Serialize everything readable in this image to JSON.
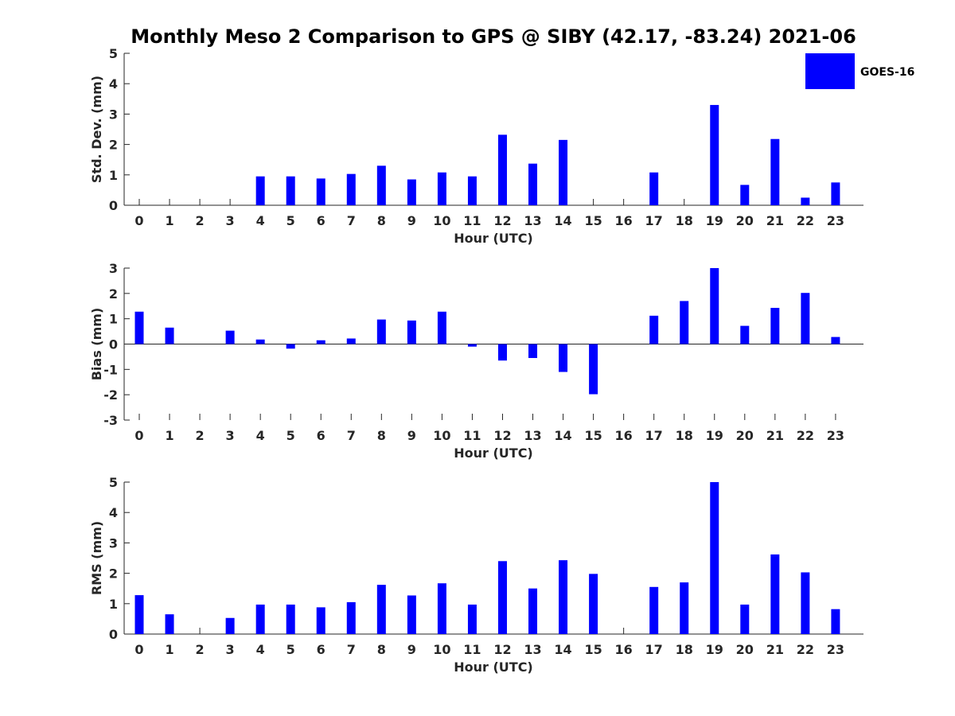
{
  "figure": {
    "title": "Monthly Meso 2 Comparison to GPS @ SIBY (42.17, -83.24) 2021-06",
    "bar_color": "#0000ff",
    "legend": {
      "label": "GOES-16",
      "placement": "top-right"
    }
  },
  "chart_data": [
    {
      "type": "bar",
      "xlabel": "Hour (UTC)",
      "ylabel": "Std. Dev. (mm)",
      "ylim": [
        0,
        5
      ],
      "yticks": [
        0,
        1,
        2,
        3,
        4,
        5
      ],
      "categories": [
        "0",
        "1",
        "2",
        "3",
        "4",
        "5",
        "6",
        "7",
        "8",
        "9",
        "10",
        "11",
        "12",
        "13",
        "14",
        "15",
        "16",
        "17",
        "18",
        "19",
        "20",
        "21",
        "22",
        "23"
      ],
      "series": [
        {
          "name": "GOES-16",
          "values": [
            0,
            0,
            0,
            0,
            0.95,
            0.95,
            0.88,
            1.03,
            1.3,
            0.85,
            1.08,
            0.95,
            2.32,
            1.37,
            2.15,
            0,
            0,
            1.08,
            0,
            3.3,
            0.67,
            2.18,
            0.25,
            0.75
          ]
        }
      ]
    },
    {
      "type": "bar",
      "xlabel": "Hour (UTC)",
      "ylabel": "Bias (mm)",
      "ylim": [
        -3,
        3
      ],
      "yticks": [
        -3,
        -2,
        -1,
        0,
        1,
        2,
        3
      ],
      "categories": [
        "0",
        "1",
        "2",
        "3",
        "4",
        "5",
        "6",
        "7",
        "8",
        "9",
        "10",
        "11",
        "12",
        "13",
        "14",
        "15",
        "16",
        "17",
        "18",
        "19",
        "20",
        "21",
        "22",
        "23"
      ],
      "series": [
        {
          "name": "GOES-16",
          "values": [
            1.28,
            0.65,
            0,
            0.53,
            0.18,
            -0.18,
            0.15,
            0.22,
            0.97,
            0.93,
            1.28,
            -0.1,
            -0.65,
            -0.55,
            -1.1,
            -1.98,
            0,
            1.12,
            1.7,
            3.0,
            0.72,
            1.43,
            2.02,
            0.28
          ]
        }
      ]
    },
    {
      "type": "bar",
      "xlabel": "Hour (UTC)",
      "ylabel": "RMS (mm)",
      "ylim": [
        0,
        5
      ],
      "yticks": [
        0,
        1,
        2,
        3,
        4,
        5
      ],
      "categories": [
        "0",
        "1",
        "2",
        "3",
        "4",
        "5",
        "6",
        "7",
        "8",
        "9",
        "10",
        "11",
        "12",
        "13",
        "14",
        "15",
        "16",
        "17",
        "18",
        "19",
        "20",
        "21",
        "22",
        "23"
      ],
      "series": [
        {
          "name": "GOES-16",
          "values": [
            1.28,
            0.65,
            0,
            0.53,
            0.97,
            0.97,
            0.88,
            1.05,
            1.62,
            1.27,
            1.67,
            0.97,
            2.4,
            1.5,
            2.43,
            1.98,
            0,
            1.55,
            1.7,
            5.0,
            0.97,
            2.62,
            2.03,
            0.82
          ]
        }
      ]
    }
  ]
}
